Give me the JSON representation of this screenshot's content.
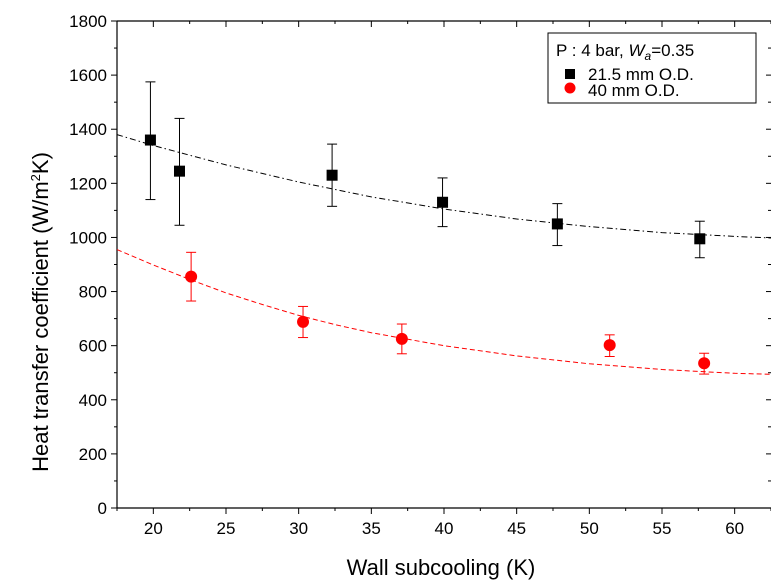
{
  "chart_data": {
    "type": "scatter",
    "xlabel": "Wall subcooling (K)",
    "ylabel_main": "Heat transfer coefficient (W/m",
    "ylabel_sup": "2",
    "ylabel_end": "K)",
    "xlim": [
      17.5,
      62.5
    ],
    "ylim": [
      0,
      1800
    ],
    "xticks": [
      20,
      25,
      30,
      35,
      40,
      45,
      50,
      55,
      60
    ],
    "yticks": [
      0,
      200,
      400,
      600,
      800,
      1000,
      1200,
      1400,
      1600,
      1800
    ],
    "grid": false,
    "legend": {
      "position": "top-right",
      "title_prefix": "P : 4 bar,",
      "title_var": "W",
      "title_sub": "a",
      "title_suffix": "=0.35"
    },
    "series": [
      {
        "name": "21.5 mm O.D.",
        "marker": "square",
        "color": "#000000",
        "points": [
          {
            "x": 19.8,
            "y": 1360,
            "err_low": 1140,
            "err_high": 1575
          },
          {
            "x": 21.8,
            "y": 1245,
            "err_low": 1045,
            "err_high": 1440
          },
          {
            "x": 32.3,
            "y": 1230,
            "err_low": 1115,
            "err_high": 1345
          },
          {
            "x": 39.9,
            "y": 1130,
            "err_low": 1040,
            "err_high": 1220
          },
          {
            "x": 47.8,
            "y": 1050,
            "err_low": 970,
            "err_high": 1125
          },
          {
            "x": 57.6,
            "y": 995,
            "err_low": 925,
            "err_high": 1060
          }
        ],
        "fit": {
          "style": "dash-dot",
          "points": [
            [
              17.5,
              1380
            ],
            [
              20,
              1340
            ],
            [
              25,
              1268
            ],
            [
              30,
              1205
            ],
            [
              35,
              1150
            ],
            [
              40,
              1105
            ],
            [
              45,
              1068
            ],
            [
              50,
              1040
            ],
            [
              55,
              1018
            ],
            [
              60,
              1004
            ],
            [
              62.5,
              998
            ]
          ]
        }
      },
      {
        "name": "40 mm O.D.",
        "marker": "circle",
        "color": "#ff0000",
        "points": [
          {
            "x": 22.6,
            "y": 855,
            "err_low": 765,
            "err_high": 945
          },
          {
            "x": 30.3,
            "y": 688,
            "err_low": 630,
            "err_high": 745
          },
          {
            "x": 37.1,
            "y": 625,
            "err_low": 570,
            "err_high": 680
          },
          {
            "x": 51.4,
            "y": 602,
            "err_low": 560,
            "err_high": 640
          },
          {
            "x": 57.9,
            "y": 535,
            "err_low": 495,
            "err_high": 572
          }
        ],
        "fit": {
          "style": "dashed",
          "points": [
            [
              17.5,
              955
            ],
            [
              20,
              898
            ],
            [
              22.5,
              845
            ],
            [
              25,
              795
            ],
            [
              27.5,
              752
            ],
            [
              30,
              712
            ],
            [
              32.5,
              678
            ],
            [
              35,
              648
            ],
            [
              40,
              600
            ],
            [
              45,
              562
            ],
            [
              50,
              533
            ],
            [
              55,
              512
            ],
            [
              60,
              498
            ],
            [
              62.5,
              494
            ]
          ]
        }
      }
    ]
  }
}
